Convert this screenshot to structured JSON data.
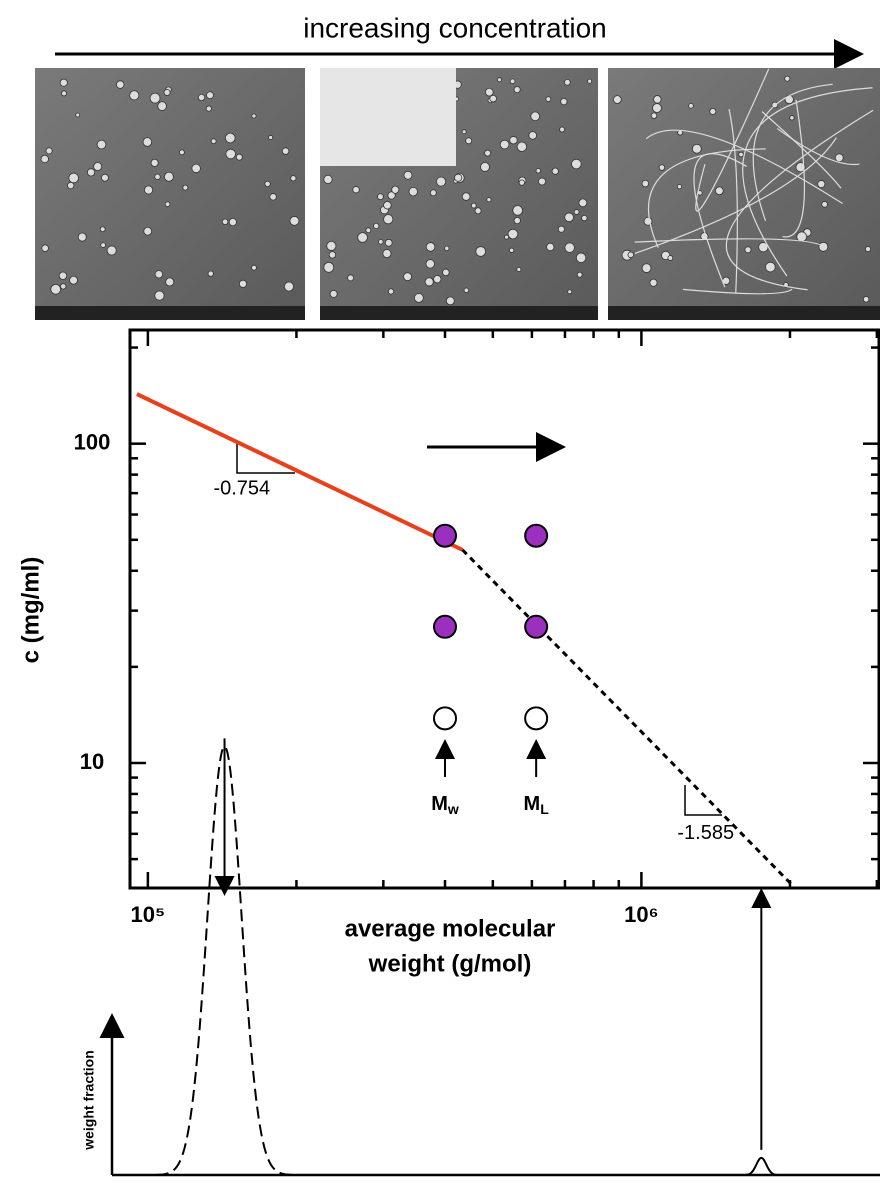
{
  "header": {
    "title": "increasing concentration"
  },
  "chart_data": {
    "type": "loglog",
    "ylabel": "c (mg/ml)",
    "xlabel_lines": [
      "average molecular",
      "weight (g/mol)"
    ],
    "xlog": true,
    "ylog": true,
    "xlim": [
      92000,
      3030000
    ],
    "ylim": [
      4.06,
      227
    ],
    "xticks": [
      {
        "value": 100000,
        "label": "10⁵"
      },
      {
        "value": 1000000,
        "label": "10⁶"
      }
    ],
    "xminor": [
      200000,
      300000,
      400000,
      500000,
      600000,
      700000,
      800000,
      900000,
      2000000,
      3000000
    ],
    "yticks": [
      10,
      100
    ],
    "yminor": [
      5,
      6,
      7,
      8,
      9,
      20,
      30,
      40,
      50,
      60,
      70,
      80,
      90,
      200
    ],
    "lines": [
      {
        "x": [
          95000,
          434000
        ],
        "y": [
          143,
          46.5
        ],
        "color": "#e8401c",
        "style": "solid"
      },
      {
        "x": [
          434000,
          2020000
        ],
        "y": [
          46.5,
          4.15
        ],
        "color": "#000000",
        "style": "dotted"
      }
    ],
    "points": [
      {
        "x": [
          400000,
          612000,
          400000,
          612000
        ],
        "y": [
          51.5,
          51.5,
          26.7,
          26.7
        ],
        "color": "#9b30c0"
      },
      {
        "x": [
          400000,
          612000
        ],
        "y": [
          13.8,
          13.8
        ],
        "color": "#ffffff"
      }
    ],
    "annotations": [
      {
        "text": "-0.754",
        "x": 155000,
        "y": 72
      },
      {
        "text": "-1.585",
        "x": 1350000,
        "y": 6
      },
      {
        "text": "M",
        "sub": "w",
        "x": 400000,
        "y": 10
      },
      {
        "text": "M",
        "sub": "L",
        "x": 612000,
        "y": 10
      }
    ],
    "distribution": {
      "ylabel": "weight fraction",
      "peaks_x": [
        143000,
        1750000
      ],
      "peak_heights": [
        1,
        0.04
      ],
      "ylim": [
        0,
        1.05
      ]
    }
  }
}
